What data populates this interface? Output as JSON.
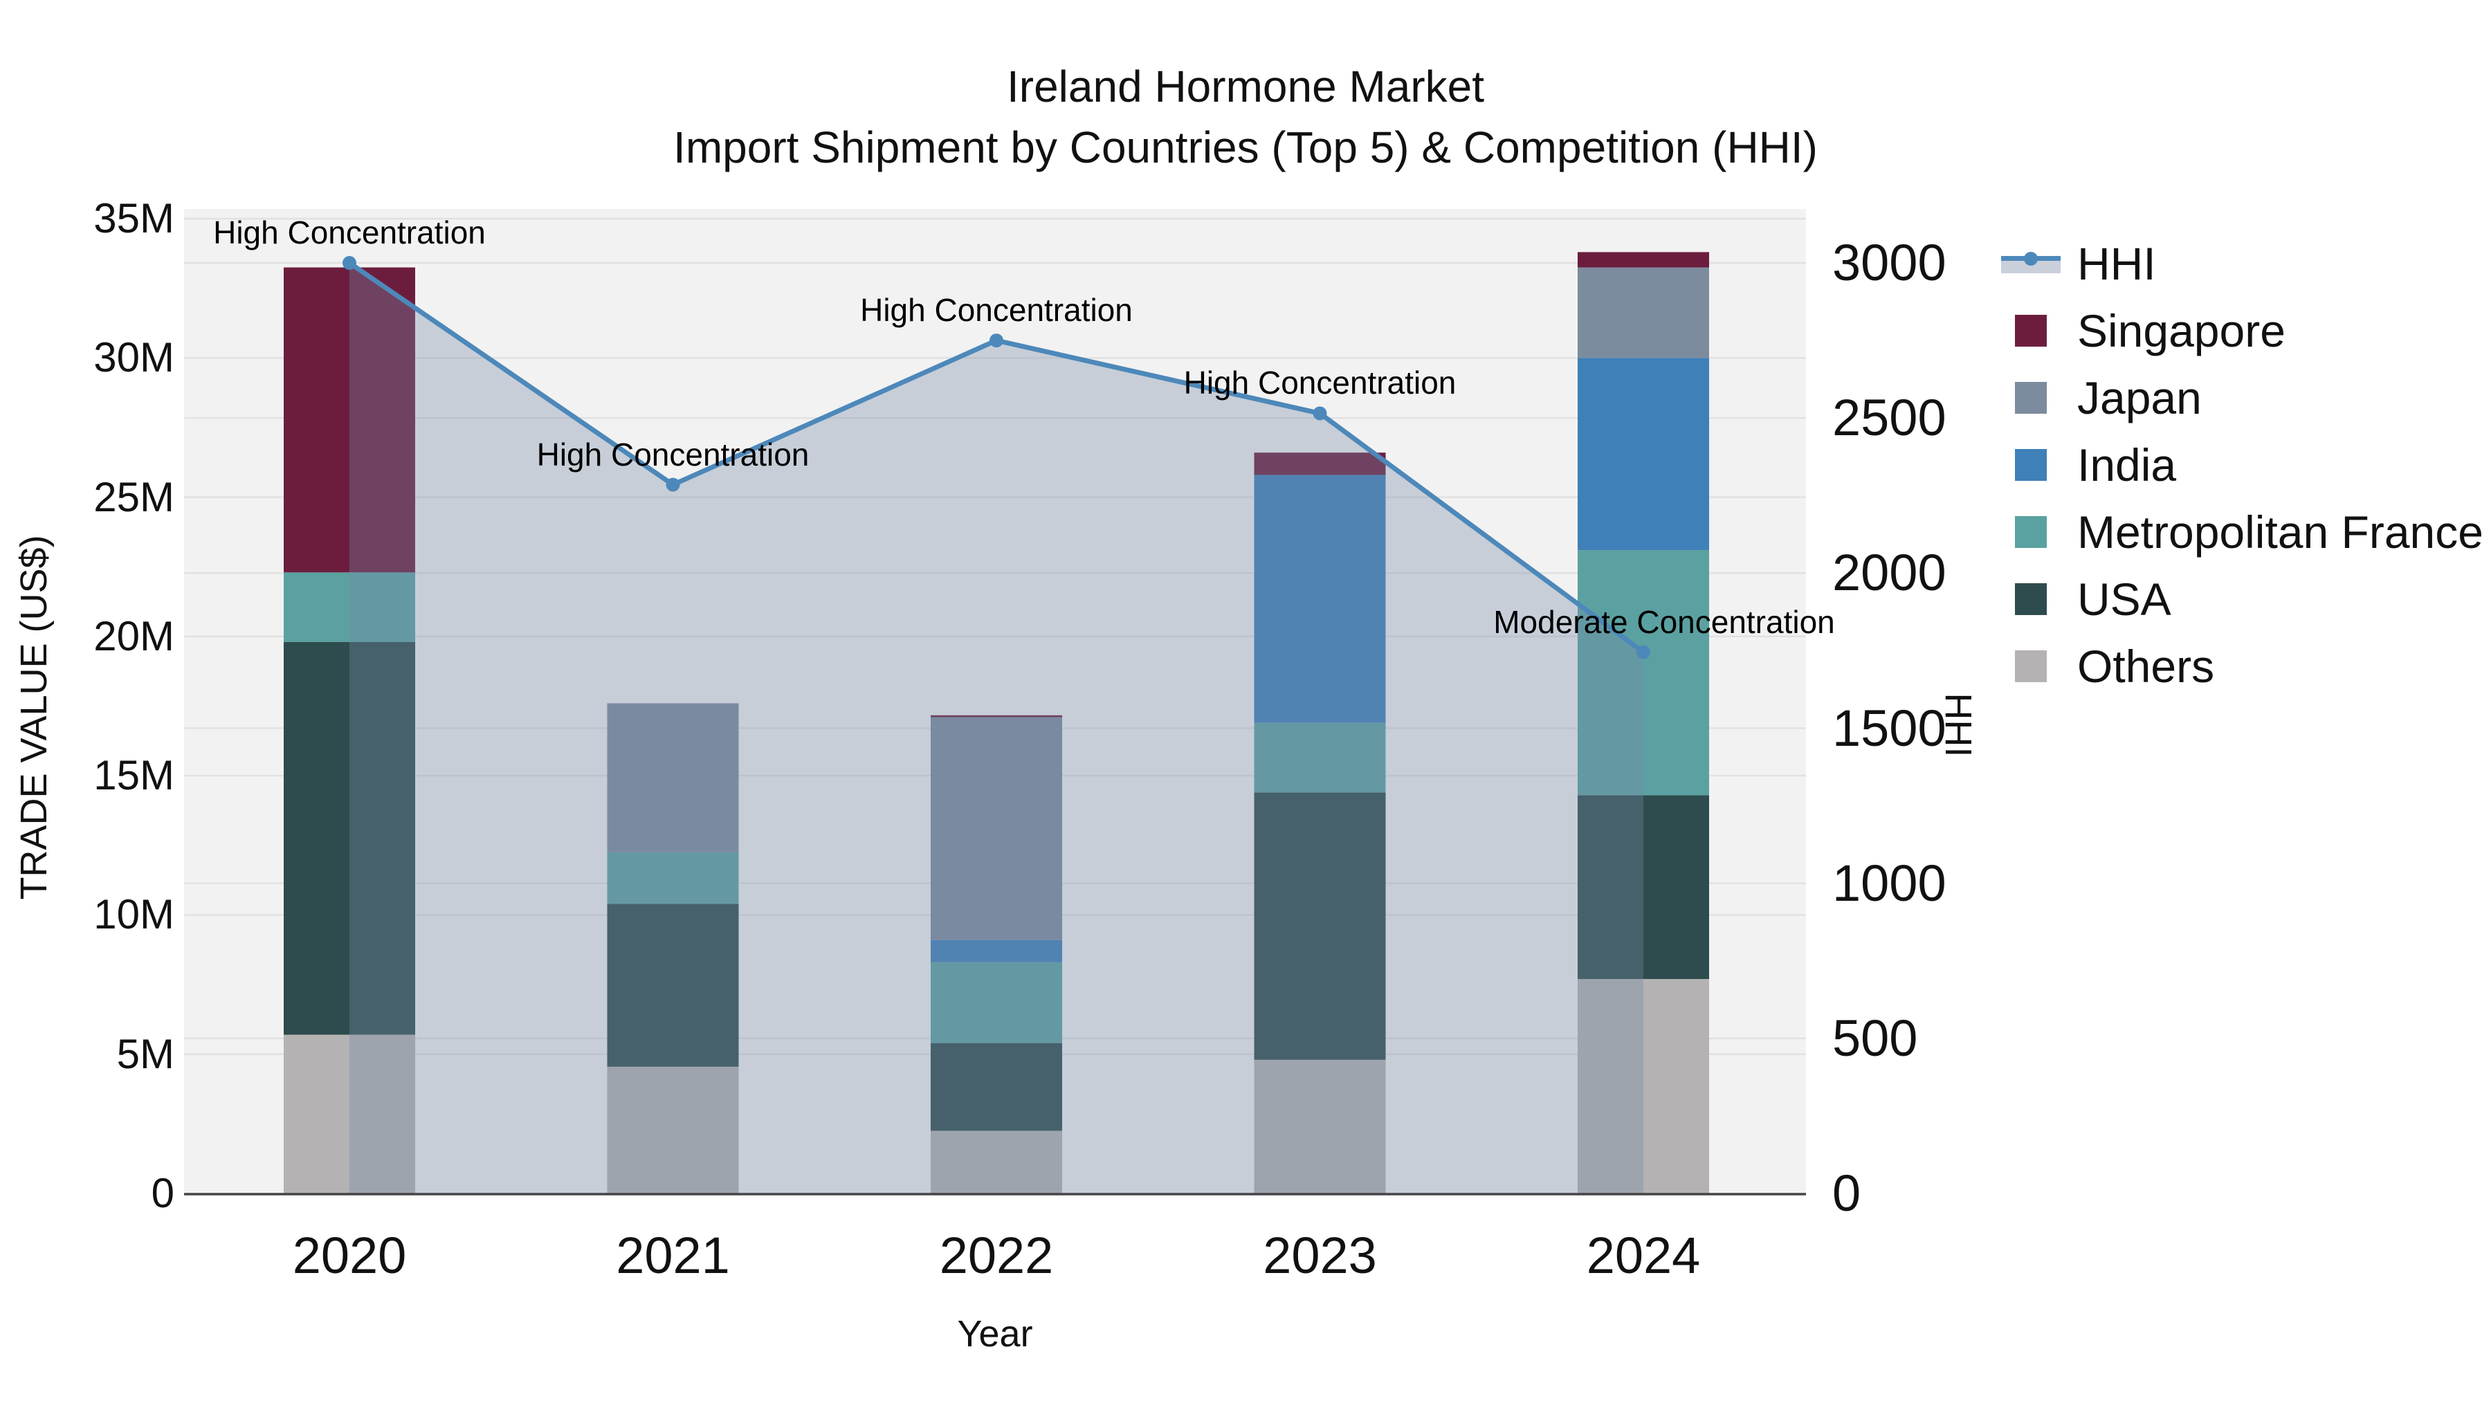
{
  "title": {
    "line1": "Ireland Hormone Market",
    "line2": "Import Shipment by Countries (Top 5) & Competition (HHI)"
  },
  "axes": {
    "left": {
      "label": "TRADE VALUE (US$)",
      "ticks": [
        {
          "v": 0,
          "label": "0"
        },
        {
          "v": 5,
          "label": "5M"
        },
        {
          "v": 10,
          "label": "10M"
        },
        {
          "v": 15,
          "label": "15M"
        },
        {
          "v": 20,
          "label": "20M"
        },
        {
          "v": 25,
          "label": "25M"
        },
        {
          "v": 30,
          "label": "30M"
        },
        {
          "v": 35,
          "label": "35M"
        }
      ]
    },
    "right": {
      "label": "HHI",
      "ticks": [
        {
          "v": 0,
          "label": "0"
        },
        {
          "v": 500,
          "label": "500"
        },
        {
          "v": 1000,
          "label": "1000"
        },
        {
          "v": 1500,
          "label": "1500"
        },
        {
          "v": 2000,
          "label": "2000"
        },
        {
          "v": 2500,
          "label": "2500"
        },
        {
          "v": 3000,
          "label": "3000"
        }
      ]
    },
    "bottom": {
      "label": "Year"
    }
  },
  "legend": {
    "items": [
      {
        "id": "hhi",
        "label": "HHI",
        "type": "line",
        "color": "#4d88ba"
      },
      {
        "id": "singapore",
        "label": "Singapore",
        "type": "patch",
        "color": "#6c1d3e"
      },
      {
        "id": "japan",
        "label": "Japan",
        "type": "patch",
        "color": "#7d8b9f"
      },
      {
        "id": "india",
        "label": "India",
        "type": "patch",
        "color": "#3f80b8"
      },
      {
        "id": "france",
        "label": "Metropolitan France",
        "type": "patch",
        "color": "#5ba1a1"
      },
      {
        "id": "usa",
        "label": "USA",
        "type": "patch",
        "color": "#2e4c4d"
      },
      {
        "id": "others",
        "label": "Others",
        "type": "patch",
        "color": "#b4b2b2"
      }
    ]
  },
  "chart_data": {
    "type": "combo-stacked-bar-line",
    "title": "Ireland Hormone Market — Import Shipment by Countries (Top 5) & Competition (HHI)",
    "xlabel": "Year",
    "ylabel": "TRADE VALUE (US$)",
    "y2label": "HHI",
    "categories": [
      "2020",
      "2021",
      "2022",
      "2023",
      "2024"
    ],
    "value_unit": "million US$",
    "series": [
      {
        "name": "Singapore",
        "color": "#6c1d3e",
        "values": [
          10.95,
          0,
          0.07,
          0.8,
          0.55
        ]
      },
      {
        "name": "Japan",
        "color": "#7d8b9f",
        "values": [
          0,
          5.35,
          8.0,
          0,
          3.25
        ]
      },
      {
        "name": "India",
        "color": "#3f80b8",
        "values": [
          0,
          0,
          0.8,
          8.9,
          6.9
        ]
      },
      {
        "name": "Metropolitan France",
        "color": "#5ba1a1",
        "values": [
          2.5,
          1.85,
          2.9,
          2.5,
          8.8
        ]
      },
      {
        "name": "USA",
        "color": "#2e4c4d",
        "values": [
          14.1,
          5.85,
          3.15,
          9.6,
          6.6
        ]
      },
      {
        "name": "Others",
        "color": "#b4b2b2",
        "values": [
          5.7,
          4.55,
          2.25,
          4.8,
          7.7
        ]
      }
    ],
    "stack_order_bottom_to_top": [
      "Others",
      "USA",
      "Metropolitan France",
      "India",
      "Japan",
      "Singapore"
    ],
    "bar_totals": [
      33.25,
      17.6,
      17.17,
      26.6,
      33.8
    ],
    "line_series": {
      "name": "HHI",
      "color": "#4d88ba",
      "fill": "rgba(118,138,168,0.34)",
      "values": [
        3000,
        2285,
        2750,
        2515,
        1745
      ]
    },
    "annotations": [
      {
        "text": "High Concentration",
        "dx": 0
      },
      {
        "text": "High Concentration",
        "dx": 0
      },
      {
        "text": "High Concentration",
        "dx": 0
      },
      {
        "text": "High Concentration",
        "dx": 0
      },
      {
        "text": "Moderate Concentration",
        "dx": 30
      }
    ],
    "ylim_left": [
      0,
      35.35
    ],
    "ylim_right": [
      0,
      3174
    ],
    "grid": true,
    "legend_position": "right"
  },
  "colors": {
    "plot_bg": "#f2f2f2",
    "grid": "#e1e1e1",
    "spine": "#454545",
    "hhi_band": "#c9d0da",
    "text": "#111111"
  }
}
